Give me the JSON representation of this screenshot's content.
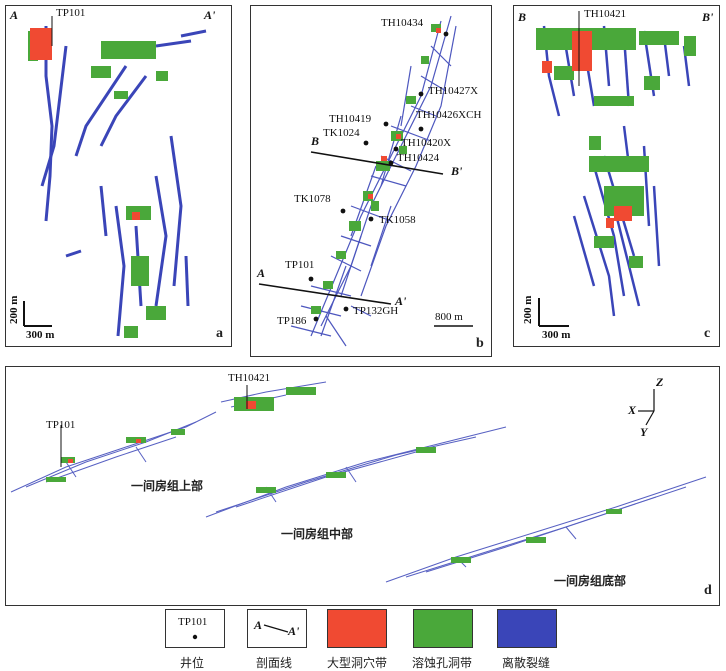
{
  "panels": {
    "a": {
      "letter": "a",
      "section_left": "A",
      "section_right": "A'",
      "well": "TP101",
      "scale_h": "300 m",
      "scale_v": "200 m"
    },
    "b": {
      "letter": "b",
      "scale": "800 m",
      "section_B": "B",
      "section_Bp": "B'",
      "section_A": "A",
      "section_Ap": "A'",
      "wells": [
        "TH10434",
        "TH10427X",
        "TH10419",
        "TH10426XCH",
        "TK1024",
        "TH10420X",
        "TH10424",
        "TK1078",
        "TK1058",
        "TP101",
        "TP132GH",
        "TP186"
      ]
    },
    "c": {
      "letter": "c",
      "section_left": "B",
      "section_right": "B'",
      "well": "TH10421",
      "scale_h": "300 m",
      "scale_v": "200 m"
    },
    "d": {
      "letter": "d",
      "well_1": "TP101",
      "well_2": "TH10421",
      "zone_upper": "一间房组上部",
      "zone_middle": "一间房组中部",
      "zone_bottom": "一间房组底部",
      "axis_z": "Z",
      "axis_x": "X",
      "axis_y": "Y"
    }
  },
  "legend": {
    "items": [
      {
        "label": "井位",
        "sample": "TP101"
      },
      {
        "label": "剖面线",
        "sample_a": "A",
        "sample_ap": "A'"
      },
      {
        "label": "大型洞穴带",
        "color": "#f04a32"
      },
      {
        "label": "溶蚀孔洞带",
        "color": "#4aa83a"
      },
      {
        "label": "离散裂缝",
        "color": "#3a45b8"
      }
    ]
  },
  "colors": {
    "cave": "#f04a32",
    "vug": "#4aa83a",
    "fracture": "#3a45b8"
  }
}
